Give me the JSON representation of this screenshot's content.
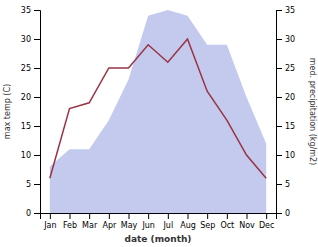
{
  "chart_data": {
    "type": "line",
    "xlabel": "date (month)",
    "ylabel": "max temp (C)",
    "y2label": "med. precipitation (kg/m2)",
    "categories": [
      "Jan",
      "Feb",
      "Mar",
      "Apr",
      "May",
      "Jun",
      "Jul",
      "Aug",
      "Sep",
      "Oct",
      "Nov",
      "Dec"
    ],
    "series": [
      {
        "type": "area",
        "axis": "y2",
        "color": "#b0b8e8",
        "values": [
          8,
          11,
          11,
          16,
          23,
          34,
          35,
          34,
          29,
          29,
          20,
          12
        ]
      },
      {
        "type": "line",
        "color": "#993344",
        "values": [
          6,
          18,
          19,
          25,
          25,
          29,
          26,
          30,
          21,
          16,
          10,
          6
        ]
      }
    ],
    "ylim": [
      0,
      35
    ],
    "yticks": [
      0,
      5,
      10,
      15,
      20,
      25,
      30,
      35
    ],
    "y2lim": [
      0,
      35
    ],
    "y2ticks": [
      0,
      5,
      10,
      15,
      20,
      25,
      30,
      35
    ],
    "grid": false
  }
}
